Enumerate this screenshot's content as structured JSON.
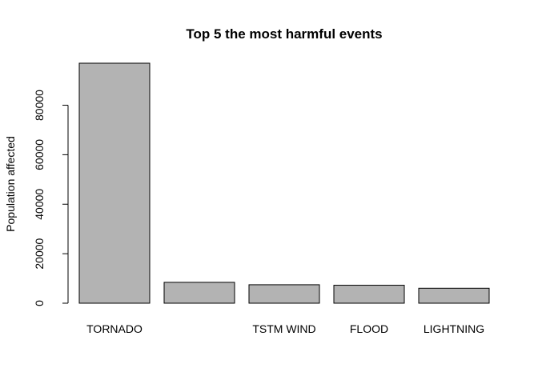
{
  "chart_data": {
    "type": "bar",
    "title": "Top 5 the most harmful events",
    "xlabel": "",
    "ylabel": "Population affected",
    "categories": [
      "TORNADO",
      "",
      "TSTM WIND",
      "FLOOD",
      "LIGHTNING"
    ],
    "values": [
      96979,
      8428,
      7461,
      7259,
      6046
    ],
    "ylim": [
      0,
      96979
    ],
    "yticks": [
      0,
      20000,
      40000,
      60000,
      80000
    ],
    "grid": false,
    "bar_color": "#b3b3b3",
    "bar_edge_color": "#000000"
  }
}
